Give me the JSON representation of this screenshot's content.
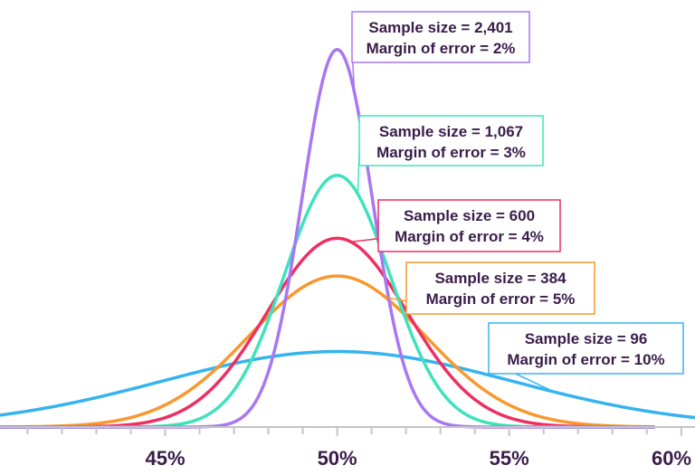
{
  "chart_data": {
    "type": "line",
    "title": "",
    "xlabel": "",
    "ylabel": "",
    "xlim": [
      40.2,
      60.4
    ],
    "x_ticks": [
      45,
      50,
      55,
      60
    ],
    "x_tick_labels": [
      "45%",
      "50%",
      "55%",
      "60%"
    ],
    "minor_tick_step": 1,
    "grid": false,
    "series": [
      {
        "name": "Sample size = 96",
        "sample_size": 96,
        "margin_of_error": 10,
        "mean": 50,
        "std_dev": 5.1,
        "peak_height": 0.078,
        "color": "#36b3ef",
        "x_range": [
          40.2,
          60.4
        ],
        "annotation": [
          "Sample size = 96",
          "Margin of error = 10%"
        ]
      },
      {
        "name": "Sample size = 384",
        "sample_size": 384,
        "margin_of_error": 5,
        "mean": 50,
        "std_dev": 2.55,
        "peak_height": 0.156,
        "color": "#f9982e",
        "x_range": [
          40.2,
          59.2
        ],
        "annotation": [
          "Sample size = 384",
          "Margin of error = 5%"
        ]
      },
      {
        "name": "Sample size = 600",
        "sample_size": 600,
        "margin_of_error": 4,
        "mean": 50,
        "std_dev": 2.04,
        "peak_height": 0.195,
        "color": "#ee2f62",
        "x_range": [
          40.2,
          59.2
        ],
        "annotation": [
          "Sample size = 600",
          "Margin of error = 4%"
        ]
      },
      {
        "name": "Sample size = 1,067",
        "sample_size": 1067,
        "margin_of_error": 3,
        "mean": 50,
        "std_dev": 1.53,
        "peak_height": 0.26,
        "color": "#3ee2bd",
        "x_range": [
          40.2,
          59.2
        ],
        "annotation": [
          "Sample size = 1,067",
          "Margin of error = 3%"
        ]
      },
      {
        "name": "Sample size = 2,401",
        "sample_size": 2401,
        "margin_of_error": 2,
        "mean": 50,
        "std_dev": 1.02,
        "peak_height": 0.39,
        "color": "#a877f2",
        "x_range": [
          40.2,
          59.2
        ],
        "annotation": [
          "Sample size = 2,401",
          "Margin of error = 2%"
        ]
      }
    ]
  },
  "colors": {
    "axis": "#c4c4c4",
    "text": "#3a1d4a",
    "background": "#ffffff"
  }
}
